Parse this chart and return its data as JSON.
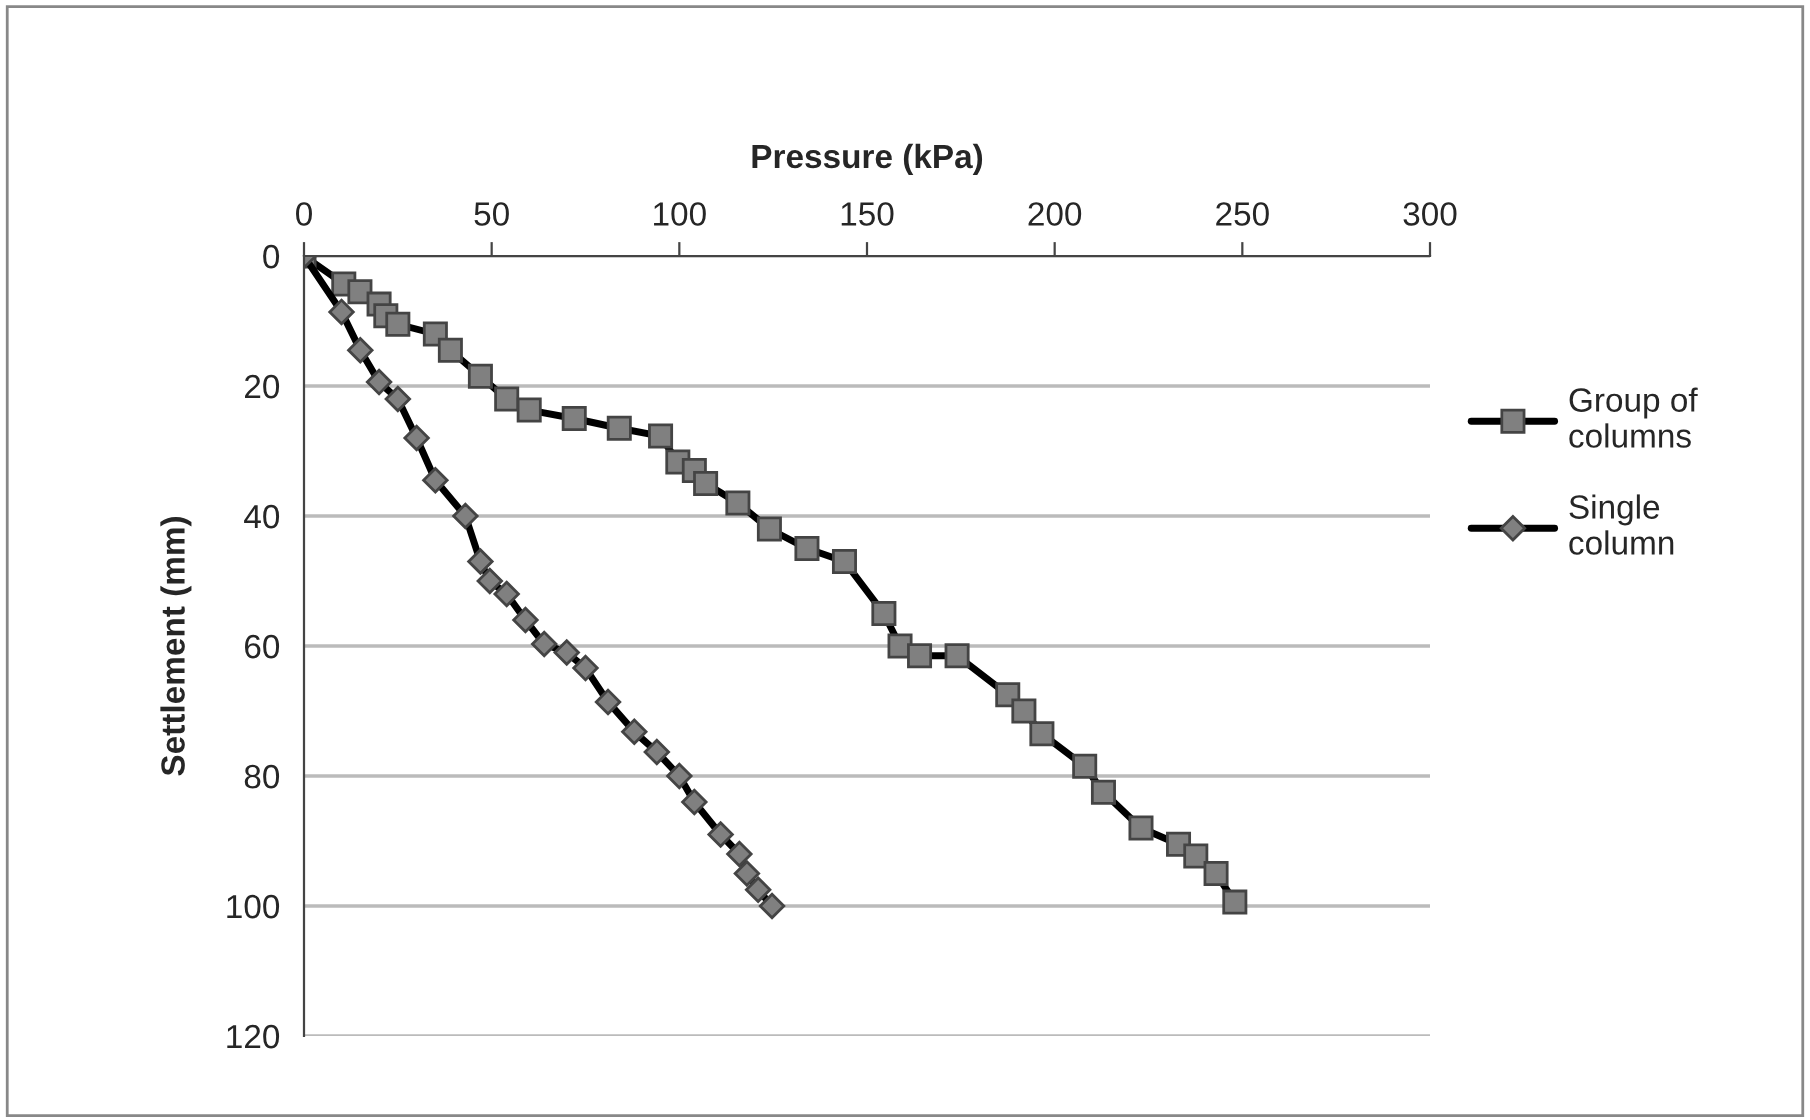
{
  "chart_data": {
    "type": "line",
    "xlabel": "Pressure (kPa)",
    "ylabel": "Settlement (mm)",
    "xlim": [
      0,
      300
    ],
    "xticks": [
      0,
      50,
      100,
      150,
      200,
      250,
      300
    ],
    "ylim": [
      120,
      0
    ],
    "yticks": [
      0,
      20,
      40,
      60,
      80,
      100,
      120
    ],
    "grid": "y",
    "legend": "right",
    "line_style": "solid",
    "series": [
      {
        "name": "Group of\ncolumns",
        "color": "#808080",
        "marker": "square",
        "x": [
          0,
          10.6,
          14.9,
          20,
          21.8,
          25,
          35,
          39,
          47,
          54,
          60,
          72,
          84,
          95,
          99.6,
          104,
          107,
          115.6,
          124,
          134,
          144,
          154.5,
          158.8,
          164,
          174,
          187.5,
          191.8,
          196.6,
          208,
          213,
          223,
          233,
          237.6,
          243,
          248
        ],
        "values": [
          0,
          4.3,
          5.5,
          7.4,
          9.2,
          10.5,
          12,
          14.5,
          18.5,
          22,
          23.7,
          25,
          26.5,
          27.7,
          31.7,
          33,
          35,
          38,
          42,
          45,
          47,
          55,
          60,
          61.5,
          61.5,
          67.5,
          70,
          73.5,
          78.5,
          82.5,
          88,
          90.5,
          92.3,
          95,
          99.4
        ]
      },
      {
        "name": "Single\ncolumn",
        "color": "#808080",
        "marker": "diamond",
        "x": [
          0,
          10,
          15,
          20,
          25,
          30,
          35,
          43,
          47,
          49.5,
          54,
          59,
          64,
          70,
          75,
          81,
          88,
          94,
          100,
          104,
          111,
          116,
          118,
          121,
          124.7
        ],
        "values": [
          0,
          8.6,
          14.5,
          19.4,
          22,
          28,
          34.5,
          40,
          47,
          50,
          52,
          56,
          59.7,
          61,
          63.4,
          68.6,
          73.2,
          76.3,
          80,
          84,
          89,
          92,
          95,
          97.5,
          100
        ]
      }
    ]
  }
}
